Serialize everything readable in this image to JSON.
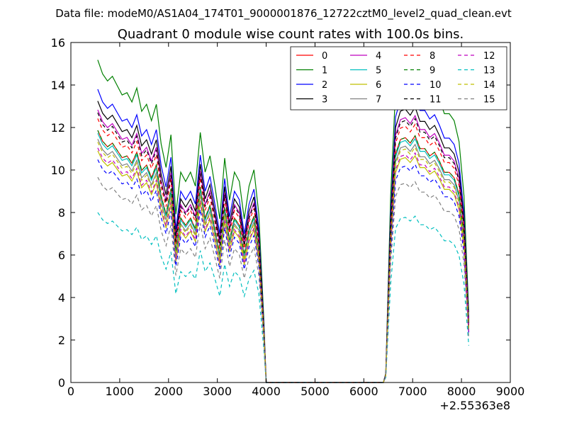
{
  "chart_data": {
    "type": "line",
    "suptitle": "Data file: modeM0/AS1A04_174T01_9000001876_12722cztM0_level2_quad_clean.evt",
    "title": "Quadrant 0 module wise count rates with 100.0s bins.",
    "xlabel": "",
    "ylabel": "",
    "x_offset_label": "+2.55363e8",
    "xlim": [
      0,
      9000
    ],
    "ylim": [
      0,
      16
    ],
    "xticks": [
      "0",
      "1000",
      "2000",
      "3000",
      "4000",
      "5000",
      "6000",
      "7000",
      "8000",
      "9000"
    ],
    "yticks": [
      "0",
      "2",
      "4",
      "6",
      "8",
      "10",
      "12",
      "14",
      "16"
    ],
    "grid": false,
    "legend_position": "top-right",
    "series": [
      {
        "name": "0",
        "color": "#ff0000",
        "dash": "solid",
        "scale": 0.86
      },
      {
        "name": "1",
        "color": "#008000",
        "dash": "solid",
        "scale": 1.1
      },
      {
        "name": "2",
        "color": "#0000ff",
        "dash": "solid",
        "scale": 1.0
      },
      {
        "name": "3",
        "color": "#000000",
        "dash": "solid",
        "scale": 0.96
      },
      {
        "name": "4",
        "color": "#bf00bf",
        "dash": "solid",
        "scale": 0.93
      },
      {
        "name": "5",
        "color": "#00bfbf",
        "dash": "solid",
        "scale": 0.85
      },
      {
        "name": "6",
        "color": "#bfbf00",
        "dash": "solid",
        "scale": 0.79
      },
      {
        "name": "7",
        "color": "#808080",
        "dash": "solid",
        "scale": 0.83
      },
      {
        "name": "8",
        "color": "#ff0000",
        "dash": "dashed",
        "scale": 0.9
      },
      {
        "name": "9",
        "color": "#008000",
        "dash": "dashed",
        "scale": 0.86
      },
      {
        "name": "10",
        "color": "#0000ff",
        "dash": "dashed",
        "scale": 0.76
      },
      {
        "name": "11",
        "color": "#000000",
        "dash": "dashed",
        "scale": 0.92
      },
      {
        "name": "12",
        "color": "#bf00bf",
        "dash": "dashed",
        "scale": 0.8
      },
      {
        "name": "13",
        "color": "#00bfbf",
        "dash": "dashed",
        "scale": 0.58
      },
      {
        "name": "14",
        "color": "#bfbf00",
        "dash": "dashed",
        "scale": 0.82
      },
      {
        "name": "15",
        "color": "#808080",
        "dash": "dashed",
        "scale": 0.7
      }
    ],
    "x": [
      550,
      650,
      750,
      850,
      950,
      1050,
      1150,
      1250,
      1350,
      1450,
      1550,
      1650,
      1750,
      1850,
      1950,
      2050,
      2150,
      2250,
      2350,
      2450,
      2550,
      2650,
      2750,
      2850,
      2950,
      3050,
      3150,
      3250,
      3350,
      3450,
      3550,
      3650,
      3750,
      3850,
      3950,
      4000,
      4100,
      4500,
      5000,
      5500,
      6000,
      6400,
      6450,
      6550,
      6650,
      6750,
      6850,
      6950,
      7050,
      7150,
      7250,
      7350,
      7450,
      7550,
      7650,
      7750,
      7850,
      7950,
      8050,
      8150
    ],
    "base_profile": [
      13.8,
      13.2,
      12.9,
      13.1,
      12.7,
      12.3,
      12.4,
      12.0,
      12.6,
      11.6,
      11.9,
      11.2,
      11.9,
      10.2,
      9.2,
      10.6,
      7.2,
      9.0,
      8.6,
      9.0,
      8.4,
      10.7,
      9.0,
      9.7,
      8.4,
      7.0,
      9.6,
      7.8,
      9.0,
      8.6,
      7.0,
      8.4,
      9.1,
      7.2,
      2.8,
      0.0,
      0.0,
      0.0,
      0.0,
      0.0,
      0.0,
      0.0,
      0.4,
      8.0,
      12.5,
      13.3,
      13.4,
      13.1,
      13.5,
      12.8,
      12.8,
      12.4,
      12.6,
      12.1,
      11.5,
      11.5,
      11.2,
      10.3,
      8.0,
      3.0
    ]
  }
}
